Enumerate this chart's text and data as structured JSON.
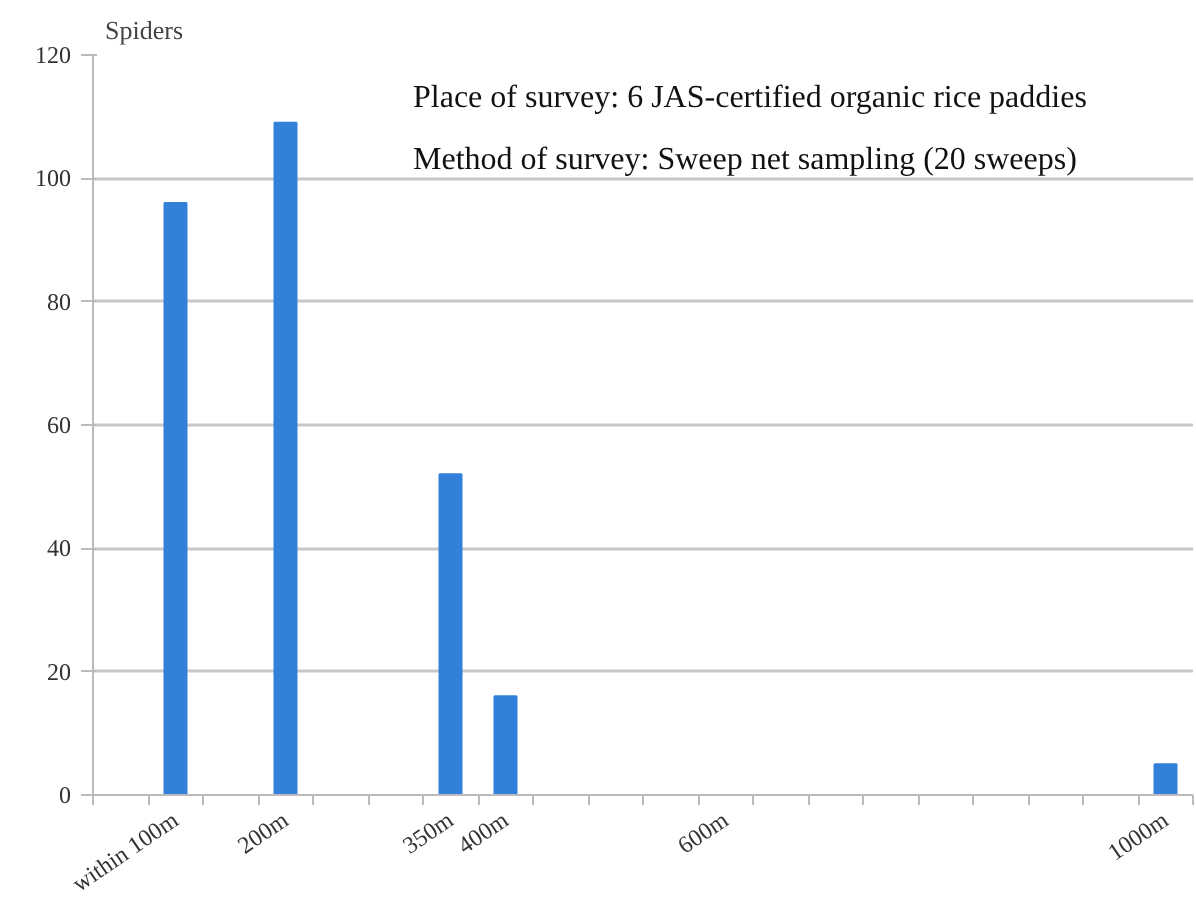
{
  "chart_data": {
    "type": "bar",
    "ylabel": "Spiders",
    "categories": [
      null,
      "within 100m",
      null,
      "200m",
      null,
      null,
      "350m",
      "400m",
      null,
      null,
      null,
      "600m",
      null,
      null,
      null,
      null,
      null,
      null,
      null,
      "1000m"
    ],
    "values": [
      0,
      96,
      0,
      109,
      0,
      0,
      52,
      16,
      0,
      0,
      0,
      0,
      0,
      0,
      0,
      0,
      0,
      0,
      0,
      5
    ],
    "color": "#3380db",
    "ylim": [
      0,
      120
    ],
    "yticks": [
      0,
      20,
      40,
      60,
      80,
      100,
      120
    ],
    "grid": "y",
    "annotations": [
      "Place of survey: 6 JAS-certified organic rice paddies",
      "Method of survey: Sweep net sampling (20 sweeps)"
    ]
  }
}
